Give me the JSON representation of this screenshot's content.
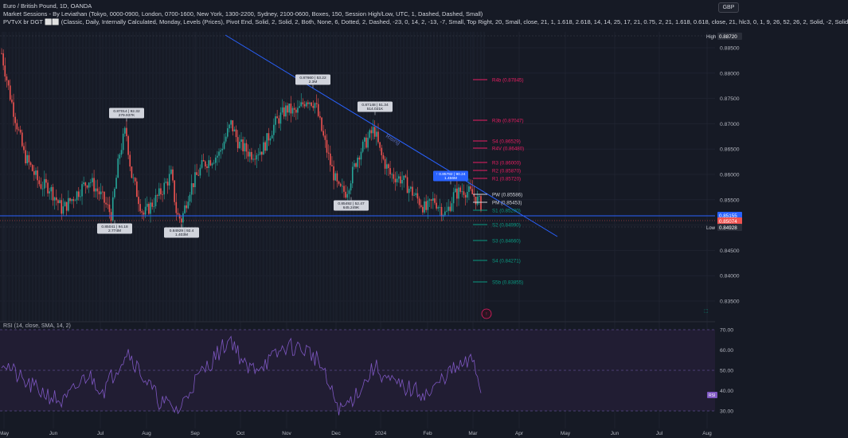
{
  "header": {
    "title": "Euro / British Pound, 1D, OANDA",
    "indicator_1": "Market Sessions - By Leviathan (Tokyo, 0000-0900, London, 0700-1600, New York, 1300-2200, Sydney, 2100-0600, Boxes, 150, Session High/Low, UTC, 1, Dashed, Dashed, Small)",
    "indicator_2": "PVTvX br DGT ⬜⬜ (Classic, Daily, Internally Calculated, Monday, Levels (Prices), Pivot End, Solid, 2, Solid, 2, Both, None, 6, Dotted, 2, Dashed, -23, 0, 14, 2, -13, -7, Small, Top Right, 20, Small, close, 21, 1, 1.618, 2.618, 14, 14, 25, 17, 21, 0.75, 2, 21, 1.618, 0.618, close, 21, hlc3, 0, 1, 9, 26, 52, 26, 2, Solid, -2, Solid",
    "currency": "GBP"
  },
  "price_scale": {
    "ticks": [
      "0.88500",
      "0.88000",
      "0.87500",
      "0.87000",
      "0.86500",
      "0.86000",
      "0.85500",
      "0.85000",
      "0.84500",
      "0.84000",
      "0.83500"
    ],
    "high_label": "High",
    "high_value": "0.88720",
    "low_label": "Low",
    "low_value": "0.84928",
    "current_value": "0.85074",
    "line_value": "0.85155"
  },
  "rsi": {
    "title": "RSI (14, close, SMA, 14, 2)",
    "ticks": [
      "70.00",
      "60.00",
      "50.00",
      "40.00",
      "30.00"
    ],
    "badge": "RSI"
  },
  "time_axis": [
    "May",
    "Jun",
    "Jul",
    "Aug",
    "Sep",
    "Oct",
    "Nov",
    "Dec",
    "2024",
    "Feb",
    "Mar",
    "Apr",
    "May",
    "Jun",
    "Jul",
    "Aug"
  ],
  "callouts": [
    {
      "l1": "0.87014 | 92.32",
      "l2": "279.937K"
    },
    {
      "l1": "0.87660 | 53.22",
      "l2": "2.3M"
    },
    {
      "l1": "0.87148 | 51.34",
      "l2": "514.021K"
    },
    {
      "l1": "0.85041 | 94.18",
      "l2": "2.774M"
    },
    {
      "l1": "0.84929 | 92.4",
      "l2": "1.403M"
    },
    {
      "l1": "0.85492 | 52.47",
      "l2": "645.249K"
    },
    {
      "l1": "↑ 0.85782 | 90.24",
      "l2": "1.456M"
    }
  ],
  "pivot_levels": [
    {
      "label": "R4b (0.87845)",
      "color": "#e91e63"
    },
    {
      "label": "R3b (0.87047)",
      "color": "#e91e63"
    },
    {
      "label": "S4 (0.86529)",
      "color": "#e91e63"
    },
    {
      "label": "R4V (0.86480)",
      "color": "#e91e63"
    },
    {
      "label": "R3 (0.86000)",
      "color": "#e91e63"
    },
    {
      "label": "R2 (0.85870)",
      "color": "#e91e63"
    },
    {
      "label": "R1 (0.85720)",
      "color": "#e91e63"
    },
    {
      "label": "PW (0.85586)",
      "color": "#d1d4dc"
    },
    {
      "label": "PM (0.85453)",
      "color": "#d1d4dc"
    },
    {
      "label": "S1 (0.85200)",
      "color": "#089981"
    },
    {
      "label": "S2 (0.84990)",
      "color": "#089981"
    },
    {
      "label": "S3 (0.84660)",
      "color": "#089981"
    },
    {
      "label": "S4 (0.84271)",
      "color": "#089981"
    },
    {
      "label": "S5b (0.83855)",
      "color": "#089981"
    }
  ],
  "trendline_label": "Rising",
  "colors": {
    "background": "#161a25",
    "up": "#26a69a",
    "down": "#ef5350",
    "trend": "#2962ff",
    "rsi": "#7e57c2"
  }
}
